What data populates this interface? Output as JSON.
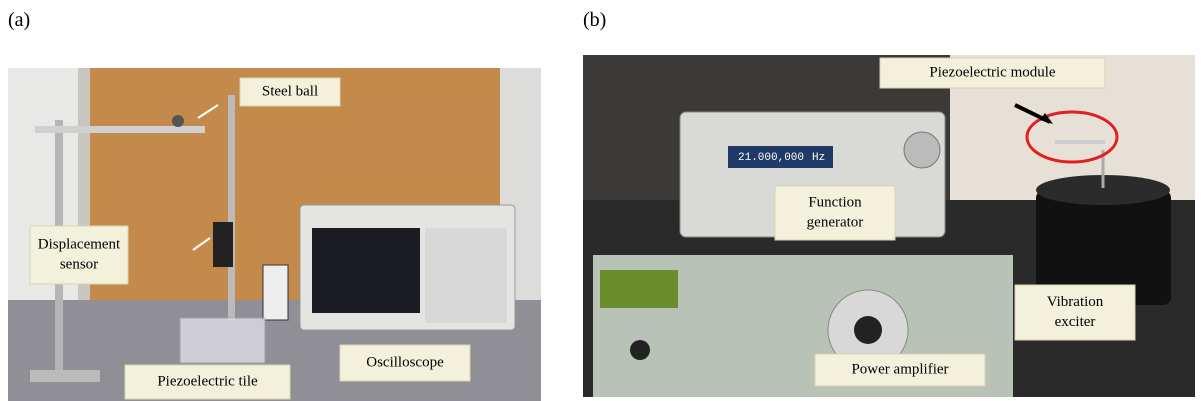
{
  "panels": [
    {
      "tag": "(a)",
      "labels": [
        {
          "lines": [
            "Steel ball"
          ]
        },
        {
          "lines": [
            "Displacement",
            "sensor"
          ]
        },
        {
          "lines": [
            "Piezoelectric tile"
          ]
        },
        {
          "lines": [
            "Oscilloscope"
          ]
        }
      ]
    },
    {
      "tag": "(b)",
      "labels": [
        {
          "lines": [
            "Piezoelectric module"
          ]
        },
        {
          "lines": [
            "Function",
            "generator"
          ]
        },
        {
          "lines": [
            "Power amplifier"
          ]
        },
        {
          "lines": [
            "Vibration",
            "exciter"
          ]
        }
      ],
      "readouts": [
        "21.000,000",
        "Hz"
      ]
    }
  ]
}
